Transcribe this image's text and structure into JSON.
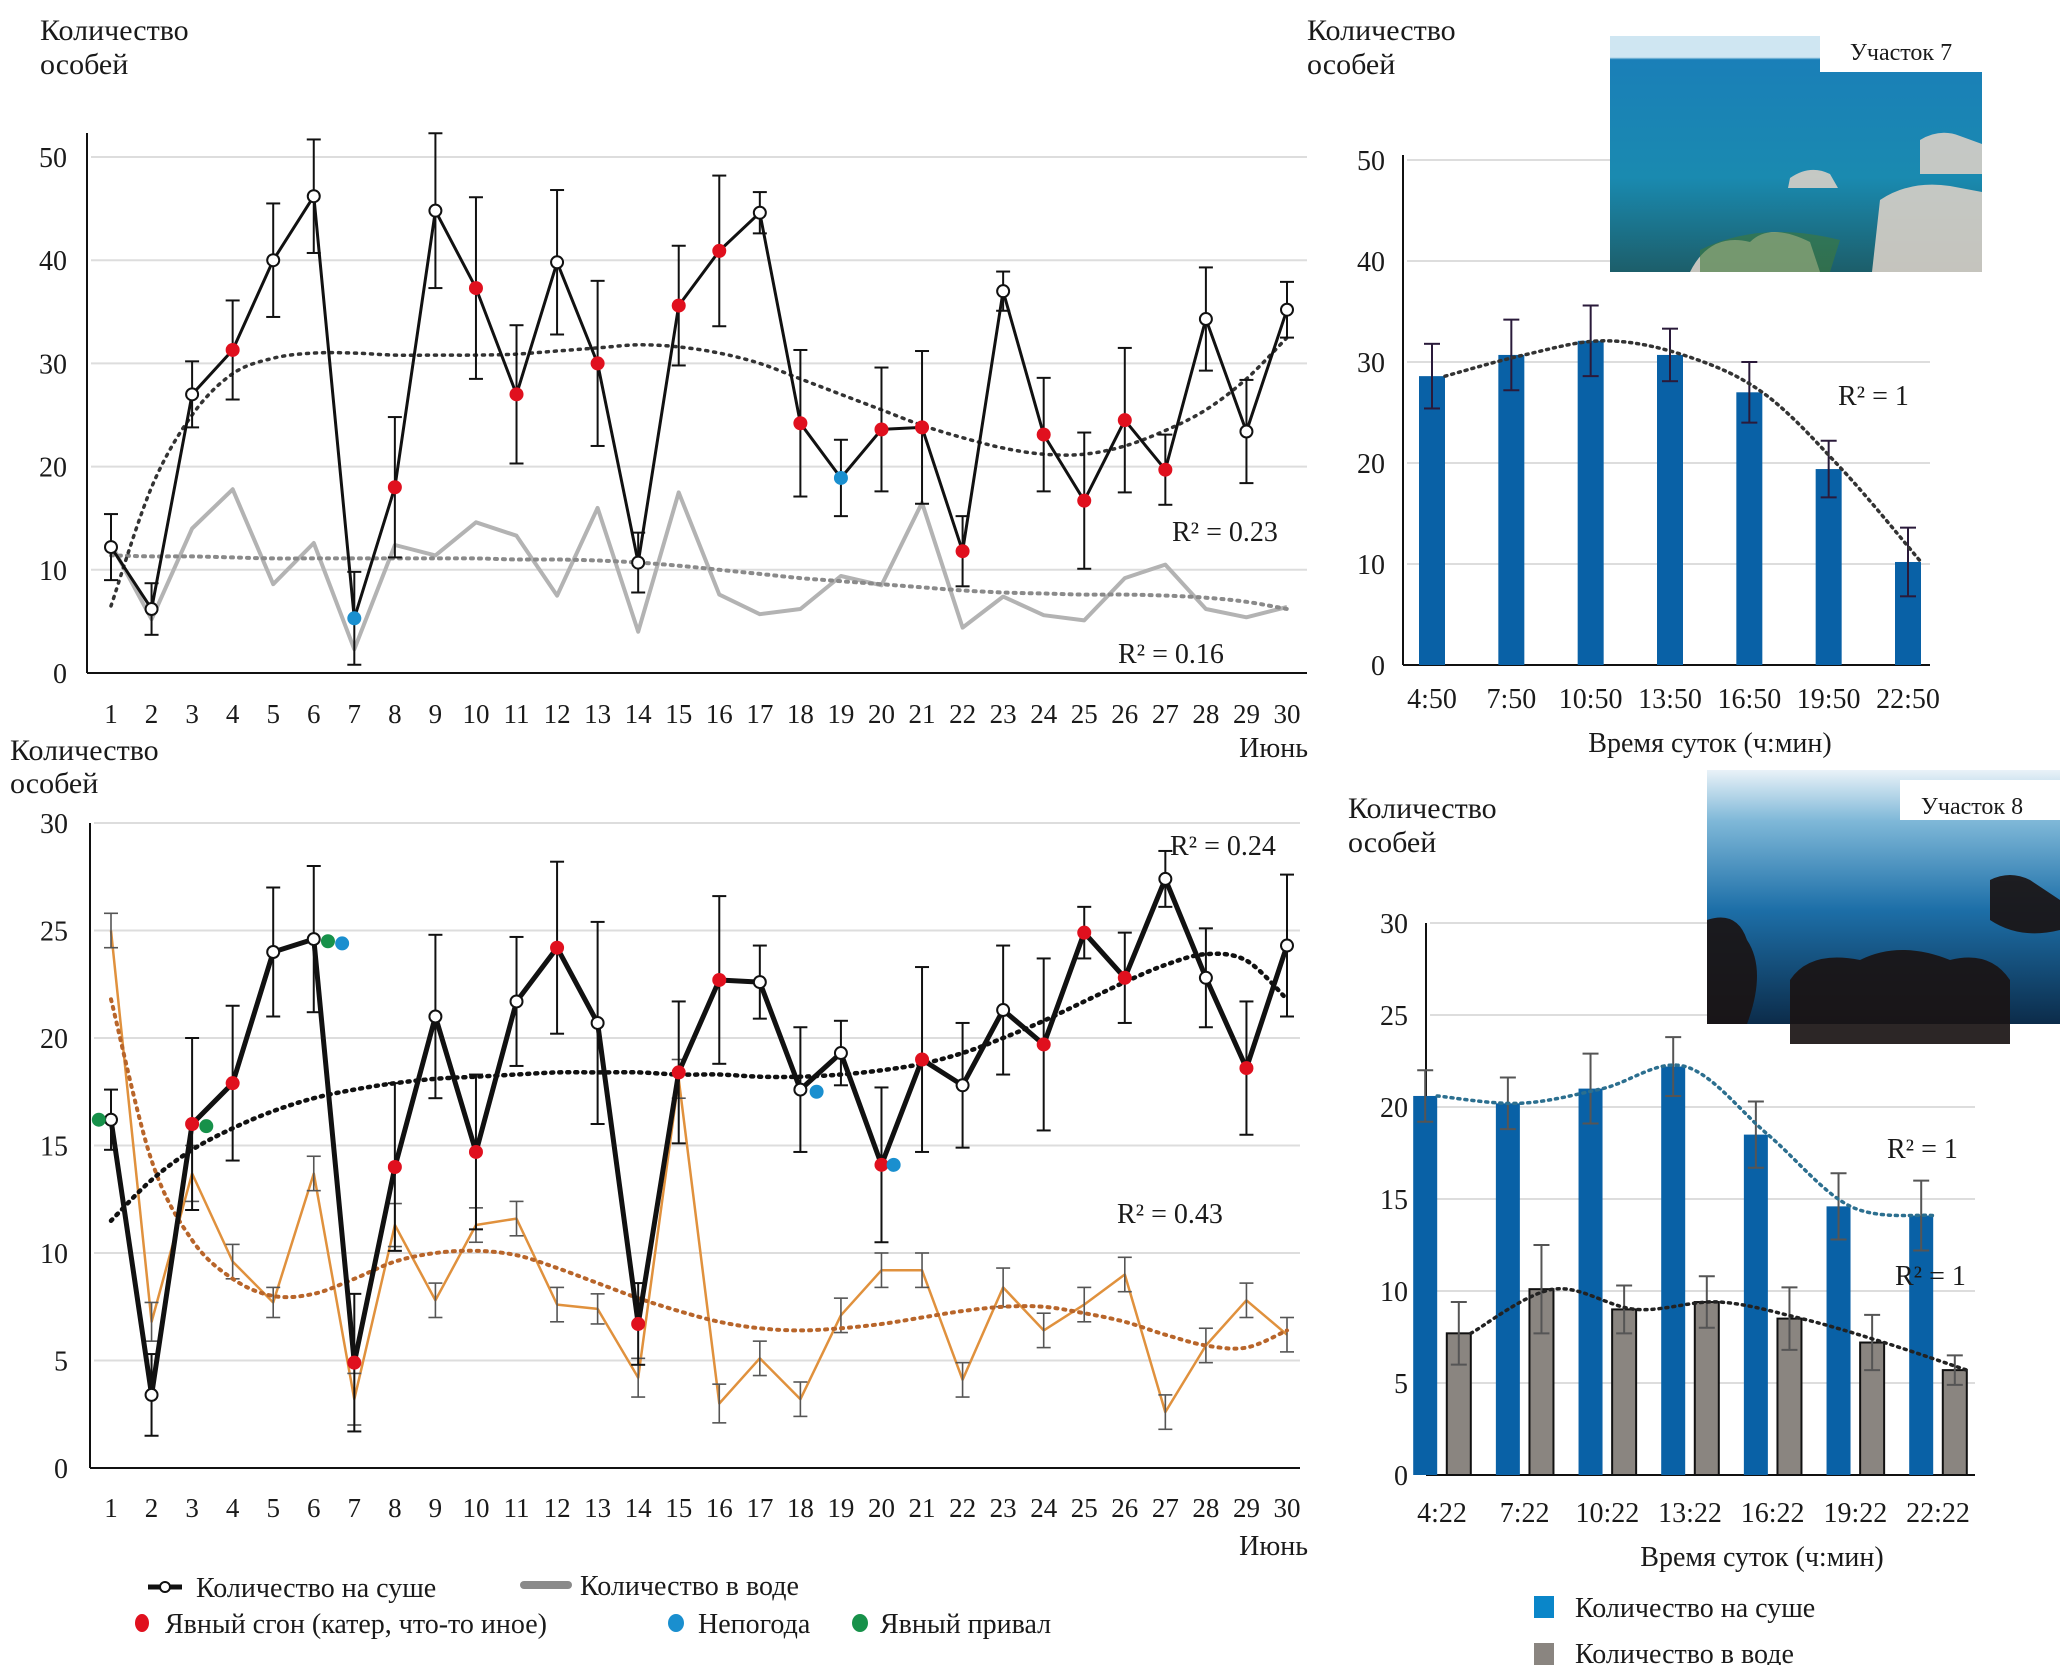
{
  "colors": {
    "land_line": "#111111",
    "water_line_top": "#b3b3b3",
    "water_line_bottom": "#e0913d",
    "water_trend_bottom": "#b8652a",
    "trend_top": "#333333",
    "water_trend_top": "#8a8a8a",
    "event_red": "#e0101e",
    "event_blue": "#1a8fcf",
    "event_green": "#17914a",
    "bar_land": "#0961a6",
    "bar_water": "#8a8580",
    "trend_land_bar8": "#2c6f8f",
    "grid": "#dddddd"
  },
  "chart_data": [
    {
      "id": "june-site-top",
      "type": "line",
      "ylabel": "Количество особей",
      "xlabel": "Июнь",
      "ylim": [
        0,
        50
      ],
      "yticks": [
        0,
        10,
        20,
        30,
        40,
        50
      ],
      "x": [
        1,
        2,
        3,
        4,
        5,
        6,
        7,
        8,
        9,
        10,
        11,
        12,
        13,
        14,
        15,
        16,
        17,
        18,
        19,
        20,
        21,
        22,
        23,
        24,
        25,
        26,
        27,
        28,
        29,
        30
      ],
      "grid": true,
      "series": [
        {
          "name": "Количество на суше",
          "values": [
            12.2,
            6.2,
            27,
            31.3,
            40,
            46.2,
            5.3,
            18,
            44.8,
            37.3,
            27,
            39.8,
            30,
            10.7,
            35.6,
            40.9,
            44.6,
            24.2,
            18.9,
            23.6,
            23.8,
            11.8,
            37,
            23.1,
            16.7,
            24.5,
            19.7,
            34.3,
            23.4,
            35.2
          ],
          "errors": [
            3.2,
            2.5,
            3.2,
            4.8,
            5.5,
            5.5,
            4.5,
            6.8,
            7.5,
            8.8,
            6.7,
            7,
            8,
            2.9,
            5.8,
            7.3,
            2,
            7.1,
            3.7,
            6,
            7.4,
            3.4,
            1.9,
            5.5,
            6.6,
            7,
            3.4,
            5,
            5,
            2.7
          ],
          "markers": [
            "open",
            "open",
            "open",
            "red",
            "open",
            "open",
            "blue",
            "red",
            "open",
            "red",
            "red",
            "open",
            "red",
            "open",
            "red",
            "red",
            "open",
            "red",
            "blue",
            "red",
            "red",
            "red",
            "open",
            "red",
            "red",
            "red",
            "red",
            "open",
            "open",
            "open"
          ],
          "trend": [
            6.5,
            18,
            25,
            29,
            30.5,
            31,
            31,
            30.8,
            30.8,
            30.8,
            30.9,
            31.2,
            31.5,
            31.8,
            31.6,
            31,
            30,
            28.5,
            27,
            25.5,
            24,
            22.8,
            21.8,
            21.2,
            21.2,
            22,
            23.5,
            25.5,
            28.5,
            32.5
          ],
          "r2": "R² = 0.23"
        },
        {
          "name": "Количество в воде",
          "values": [
            12.5,
            5.2,
            14,
            17.8,
            8.6,
            12.6,
            2.3,
            12.4,
            11.4,
            14.6,
            13.3,
            7.5,
            16,
            4,
            17.5,
            7.6,
            5.7,
            6.2,
            9.4,
            8.5,
            16.5,
            4.4,
            7.4,
            5.6,
            5.1,
            9.2,
            10.5,
            6.2,
            5.4,
            6.4
          ],
          "trend": [
            11.4,
            11.3,
            11.3,
            11.2,
            11.1,
            11.1,
            11.1,
            11.1,
            11.1,
            11.1,
            11.0,
            11.0,
            10.9,
            10.7,
            10.4,
            10.0,
            9.6,
            9.2,
            8.9,
            8.6,
            8.3,
            8.0,
            7.8,
            7.7,
            7.6,
            7.6,
            7.5,
            7.3,
            6.9,
            6.2
          ],
          "r2": "R² = 0.16"
        }
      ]
    },
    {
      "id": "june-site-bottom",
      "type": "line",
      "ylabel": "Количество особей",
      "xlabel": "Июнь",
      "ylim": [
        0,
        30
      ],
      "yticks": [
        0,
        5,
        10,
        15,
        20,
        25,
        30
      ],
      "x": [
        1,
        2,
        3,
        4,
        5,
        6,
        7,
        8,
        9,
        10,
        11,
        12,
        13,
        14,
        15,
        16,
        17,
        18,
        19,
        20,
        21,
        22,
        23,
        24,
        25,
        26,
        27,
        28,
        29,
        30
      ],
      "grid": true,
      "series": [
        {
          "name": "Количество на суше",
          "values": [
            16.2,
            3.4,
            16,
            17.9,
            24,
            24.6,
            4.9,
            14,
            21,
            14.7,
            21.7,
            24.2,
            20.7,
            6.7,
            18.4,
            22.7,
            22.6,
            17.6,
            19.3,
            14.1,
            19,
            17.8,
            21.3,
            19.7,
            24.9,
            22.8,
            27.4,
            22.8,
            18.6,
            24.3
          ],
          "errors": [
            1.4,
            1.9,
            4,
            3.6,
            3,
            3.4,
            3.2,
            3.9,
            3.8,
            3.6,
            3,
            4,
            4.7,
            1.9,
            3.3,
            3.9,
            1.7,
            2.9,
            1.5,
            3.6,
            4.3,
            2.9,
            3,
            4,
            1.2,
            2.1,
            1.3,
            2.3,
            3.1,
            3.3
          ],
          "markers": [
            "open",
            "open",
            "red",
            "red",
            "open",
            "open",
            "red",
            "red",
            "open",
            "red",
            "open",
            "red",
            "open",
            "red",
            "red",
            "red",
            "open",
            "open",
            "open",
            "red",
            "red",
            "open",
            "open",
            "red",
            "red",
            "red",
            "open",
            "open",
            "red",
            "open"
          ],
          "trend": [
            11.5,
            13.4,
            14.8,
            15.8,
            16.6,
            17.2,
            17.6,
            17.9,
            18.1,
            18.2,
            18.3,
            18.4,
            18.4,
            18.4,
            18.3,
            18.3,
            18.2,
            18.2,
            18.3,
            18.5,
            18.8,
            19.3,
            20,
            20.8,
            21.7,
            22.6,
            23.4,
            23.9,
            23.6,
            21.8
          ],
          "r2": "R² = 0.24"
        },
        {
          "name": "Количество в воде",
          "values": [
            25,
            6.8,
            13.7,
            9.6,
            7.7,
            13.7,
            3.2,
            11.3,
            7.8,
            11.3,
            11.6,
            7.6,
            7.4,
            4.2,
            18.1,
            3,
            5.1,
            3.2,
            7.1,
            9.2,
            9.2,
            4.1,
            8.4,
            6.4,
            7.6,
            9,
            2.6,
            5.7,
            7.8,
            6.2
          ],
          "errors": [
            0.8,
            0.9,
            1.3,
            0.8,
            0.7,
            0.8,
            1.2,
            1,
            0.8,
            0.8,
            0.8,
            0.8,
            0.7,
            0.9,
            0.9,
            0.9,
            0.8,
            0.8,
            0.8,
            0.8,
            0.8,
            0.8,
            0.9,
            0.8,
            0.8,
            0.8,
            0.8,
            0.8,
            0.8,
            0.8
          ],
          "trend": [
            21.8,
            14.3,
            10.6,
            8.8,
            8.0,
            8.1,
            8.8,
            9.6,
            10.0,
            10.1,
            9.9,
            9.3,
            8.6,
            7.9,
            7.3,
            6.8,
            6.5,
            6.4,
            6.5,
            6.7,
            7.0,
            7.3,
            7.5,
            7.5,
            7.2,
            6.8,
            6.2,
            5.7,
            5.6,
            6.4
          ],
          "r2": "R² = 0.43"
        }
      ],
      "extra_markers": [
        {
          "x": 0.7,
          "y": 16.2,
          "type": "green"
        },
        {
          "x": 3.35,
          "y": 15.9,
          "type": "green"
        },
        {
          "x": 6.35,
          "y": 24.5,
          "type": "green"
        },
        {
          "x": 6.7,
          "y": 24.4,
          "type": "blue"
        },
        {
          "x": 18.4,
          "y": 17.5,
          "type": "blue"
        },
        {
          "x": 20.3,
          "y": 14.1,
          "type": "blue"
        }
      ]
    },
    {
      "id": "site-7-daily",
      "type": "bar",
      "title": "Участок 7",
      "ylabel": "Количество особей",
      "xlabel": "Время суток (ч:мин)",
      "ylim": [
        0,
        50
      ],
      "yticks": [
        0,
        10,
        20,
        30,
        40,
        50
      ],
      "categories": [
        "4:50",
        "7:50",
        "10:50",
        "13:50",
        "16:50",
        "19:50",
        "22:50"
      ],
      "grid": true,
      "series": [
        {
          "name": "Количество на суше",
          "values": [
            28.6,
            30.7,
            32.1,
            30.7,
            27,
            19.4,
            10.2
          ],
          "errors": [
            3.2,
            3.5,
            3.5,
            2.6,
            3,
            2.8,
            3.4
          ]
        }
      ],
      "r2": [
        "R² = 1"
      ]
    },
    {
      "id": "site-8-daily",
      "type": "bar",
      "title": "Участок 8",
      "ylabel": "Количество особей",
      "xlabel": "Время суток (ч:мин)",
      "ylim": [
        0,
        30
      ],
      "yticks": [
        0,
        5,
        10,
        15,
        20,
        25,
        30
      ],
      "categories": [
        "4:22",
        "7:22",
        "10:22",
        "13:22",
        "16:22",
        "19:22",
        "22:22"
      ],
      "grid": true,
      "series": [
        {
          "name": "Количество на суше",
          "values": [
            20.6,
            20.2,
            21,
            22.2,
            18.5,
            14.6,
            14.1
          ],
          "errors": [
            1.4,
            1.4,
            1.9,
            1.6,
            1.8,
            1.8,
            1.9
          ]
        },
        {
          "name": "Количество в воде",
          "values": [
            7.7,
            10.1,
            9,
            9.4,
            8.5,
            7.2,
            5.7
          ],
          "errors": [
            1.7,
            2.4,
            1.3,
            1.4,
            1.7,
            1.5,
            0.8
          ]
        }
      ],
      "r2": [
        "R² = 1",
        "R² = 1"
      ],
      "legend": "bottom"
    }
  ],
  "labels": {
    "ylabel_line1": "Количество",
    "ylabel_line2": "особей",
    "june": "Июнь",
    "time_axis": "Время суток (ч:мин)",
    "site7": "Участок 7",
    "site8": "Участок 8"
  },
  "legend_left": {
    "land": "Количество на суше",
    "water": "Количество в воде",
    "red": "Явный сгон (катер, что-то иное)",
    "blue": "Непогода",
    "green": "Явный привал"
  },
  "legend_right": {
    "land": "Количество на суше",
    "water": "Количество в воде"
  }
}
